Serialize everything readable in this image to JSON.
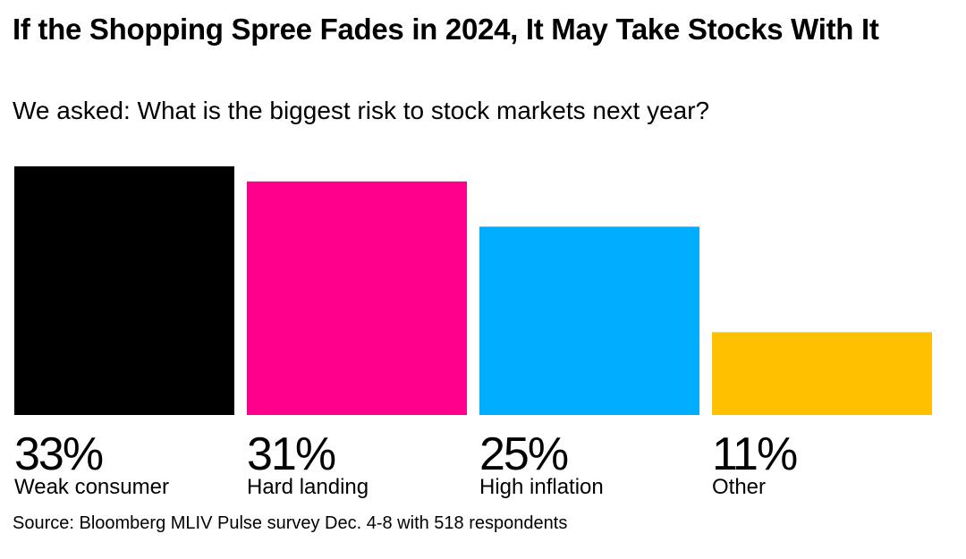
{
  "title": "If the Shopping Spree Fades in 2024, It May Take Stocks With It",
  "subtitle": "We asked: What is the biggest risk to stock markets next year?",
  "source": "Source: Bloomberg MLIV Pulse survey Dec. 4-8 with 518 respondents",
  "chart_data": {
    "type": "bar",
    "title": "If the Shopping Spree Fades in 2024, It May Take Stocks With It",
    "subtitle": "We asked: What is the biggest risk to stock markets next year?",
    "categories": [
      "Weak consumer",
      "Hard landing",
      "High inflation",
      "Other"
    ],
    "values": [
      33,
      31,
      25,
      11
    ],
    "value_labels": [
      "33%",
      "31%",
      "25%",
      "11%"
    ],
    "colors": [
      "#000000",
      "#ff008c",
      "#00adff",
      "#ffc000"
    ],
    "unit": "%",
    "ylim": [
      0,
      33
    ],
    "grid": false,
    "legend": "none",
    "source": "Source: Bloomberg MLIV Pulse survey Dec. 4-8 with 518 respondents"
  }
}
